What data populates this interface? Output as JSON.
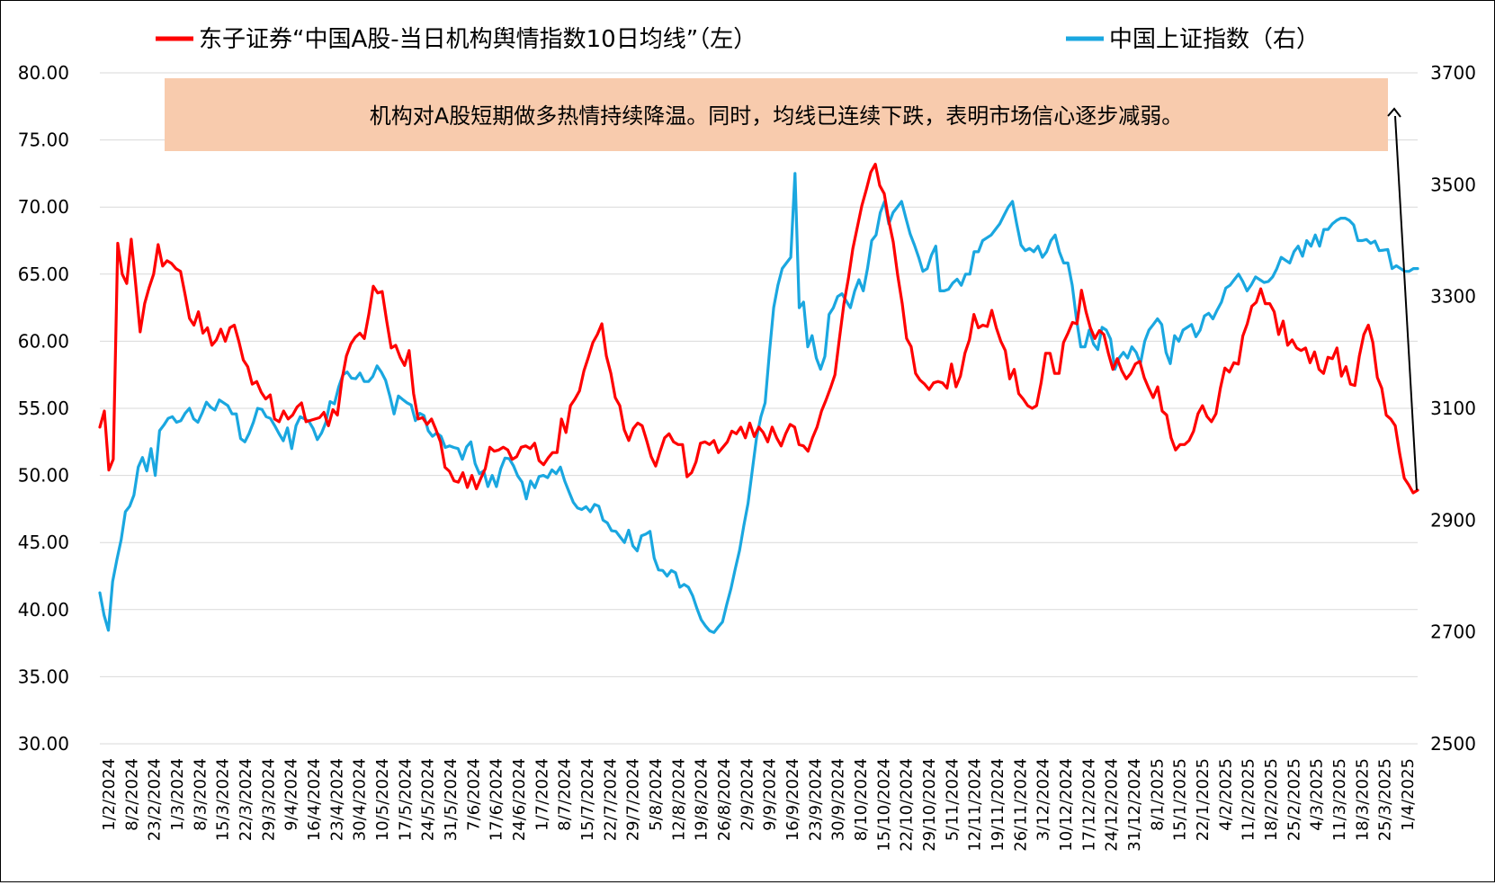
{
  "chart_data": {
    "type": "line",
    "legend": [
      {
        "name": "东子证券“中国A股-当日机构舆情指数10日均线”（左）",
        "color": "#ff0000"
      },
      {
        "name": "中国上证指数（右）",
        "color": "#1aa7e0"
      }
    ],
    "legend_position": "top",
    "grid": "horizontal",
    "y_left": {
      "min": 30,
      "max": 80,
      "step": 5,
      "ticks": [
        "30.00",
        "35.00",
        "40.00",
        "45.00",
        "50.00",
        "55.00",
        "60.00",
        "65.00",
        "70.00",
        "75.00",
        "80.00"
      ]
    },
    "y_right": {
      "min": 2500,
      "max": 3700,
      "step": 200,
      "ticks": [
        "2500",
        "2700",
        "2900",
        "3100",
        "3300",
        "3500",
        "3700"
      ]
    },
    "x_tick_labels": [
      "1/2/2024",
      "8/2/2024",
      "23/2/2024",
      "1/3/2024",
      "8/3/2024",
      "15/3/2024",
      "22/3/2024",
      "29/3/2024",
      "9/4/2024",
      "16/4/2024",
      "23/4/2024",
      "30/4/2024",
      "10/5/2024",
      "17/5/2024",
      "24/5/2024",
      "31/5/2024",
      "7/6/2024",
      "17/6/2024",
      "24/6/2024",
      "1/7/2024",
      "8/7/2024",
      "15/7/2024",
      "22/7/2024",
      "29/7/2024",
      "5/8/2024",
      "12/8/2024",
      "19/8/2024",
      "26/8/2024",
      "2/9/2024",
      "9/9/2024",
      "16/9/2024",
      "23/9/2024",
      "30/9/2024",
      "8/10/2024",
      "15/10/2024",
      "22/10/2024",
      "29/10/2024",
      "5/11/2024",
      "12/11/2024",
      "19/11/2024",
      "26/11/2024",
      "3/12/2024",
      "10/12/2024",
      "17/12/2024",
      "24/12/2024",
      "31/12/2024",
      "8/1/2025",
      "15/1/2025",
      "22/1/2025",
      "4/2/2025",
      "11/2/2025",
      "18/2/2025",
      "25/2/2025",
      "4/3/2025",
      "11/3/2025",
      "18/3/2025",
      "25/3/2025",
      "1/4/2025"
    ],
    "series": [
      {
        "name": "东子证券“中国A股-当日机构舆情指数10日均线”（左）",
        "axis": "left",
        "color": "#ff0000",
        "values": [
          53.6,
          54.8,
          50.4,
          51.2,
          67.3,
          65.0,
          64.3,
          67.6,
          64.2,
          60.7,
          62.8,
          64.0,
          65.0,
          67.2,
          65.6,
          66.0,
          65.8,
          65.4,
          65.2,
          63.5,
          61.7,
          61.2,
          62.2,
          60.6,
          61.0,
          59.7,
          60.1,
          60.9,
          60.0,
          61.0,
          61.2,
          60.0,
          58.6,
          58.1,
          56.8,
          57.0,
          56.2,
          55.7,
          56.0,
          54.2,
          54.0,
          54.8,
          54.2,
          54.5,
          55.1,
          55.4,
          54.0,
          54.1,
          54.2,
          54.3,
          54.7,
          53.7,
          54.9,
          54.5,
          57.1,
          58.9,
          59.8,
          60.3,
          60.6,
          60.2,
          62.0,
          64.1,
          63.6,
          63.7,
          61.5,
          59.5,
          59.7,
          58.8,
          58.2,
          59.3,
          56.1,
          54.2,
          54.3,
          53.8,
          54.2,
          53.4,
          52.5,
          50.6,
          50.3,
          49.6,
          49.5,
          50.2,
          49.1,
          50.0,
          49.0,
          49.8,
          50.5,
          52.1,
          51.8,
          51.9,
          52.1,
          51.9,
          51.2,
          51.4,
          52.1,
          52.2,
          52.0,
          52.4,
          51.1,
          50.8,
          51.3,
          51.7,
          51.7,
          54.2,
          53.2,
          55.2,
          55.7,
          56.3,
          57.8,
          58.8,
          59.9,
          60.5,
          61.3,
          58.9,
          57.6,
          55.8,
          55.2,
          53.4,
          52.6,
          53.5,
          53.9,
          53.7,
          52.6,
          51.4,
          50.7,
          51.8,
          52.8,
          53.1,
          52.5,
          52.3,
          52.3,
          49.9,
          50.2,
          51.0,
          52.4,
          52.5,
          52.3,
          52.6,
          51.7,
          52.1,
          52.5,
          53.3,
          53.1,
          53.6,
          52.8,
          53.9,
          52.9,
          53.6,
          53.2,
          52.5,
          53.6,
          52.8,
          52.2,
          53.1,
          53.8,
          53.6,
          52.3,
          52.2,
          51.8,
          52.8,
          53.6,
          54.8,
          55.6,
          56.5,
          57.5,
          60.2,
          62.8,
          64.7,
          66.9,
          68.5,
          70.1,
          71.3,
          72.6,
          73.2,
          71.6,
          71.0,
          69.0,
          67.4,
          64.9,
          62.8,
          60.2,
          59.6,
          57.6,
          57.1,
          56.8,
          56.4,
          56.9,
          57.0,
          56.9,
          56.5,
          58.3,
          56.6,
          57.4,
          59.1,
          60.1,
          62.0,
          61.0,
          61.2,
          61.1,
          62.3,
          61.0,
          60.0,
          59.3,
          57.2,
          57.9,
          56.1,
          55.7,
          55.2,
          55.0,
          55.2,
          56.9,
          59.1,
          59.1,
          57.6,
          57.6,
          59.9,
          60.6,
          61.4,
          61.3,
          63.8,
          62.2,
          61.0,
          60.2,
          60.8,
          60.5,
          59.1,
          57.9,
          58.7,
          57.8,
          57.2,
          57.6,
          58.3,
          58.5,
          57.3,
          56.5,
          55.8,
          56.6,
          54.8,
          54.5,
          52.8,
          51.9,
          52.3,
          52.3,
          52.6,
          53.3,
          54.6,
          55.2,
          54.4,
          54.0,
          54.6,
          56.5,
          58.0,
          57.7,
          58.4,
          58.3,
          60.4,
          61.3,
          62.6,
          62.9,
          63.9,
          62.8,
          62.8,
          62.2,
          60.5,
          61.5,
          59.7,
          60.1,
          59.5,
          59.3,
          59.5,
          58.4,
          59.2,
          57.9,
          57.6,
          58.8,
          58.7,
          59.5,
          57.4,
          58.1,
          56.8,
          56.7,
          58.9,
          60.5,
          61.2,
          59.9,
          57.3,
          56.5,
          54.5,
          54.2,
          53.7,
          51.6,
          49.8,
          49.3,
          48.7,
          48.9
        ]
      },
      {
        "name": "中国上证指数（右）",
        "axis": "right",
        "color": "#1aa7e0",
        "values": [
          2770,
          2730,
          2703,
          2790,
          2830,
          2865,
          2915,
          2925,
          2945,
          2995,
          3012,
          2988,
          3028,
          2980,
          3060,
          3070,
          3082,
          3085,
          3075,
          3078,
          3091,
          3100,
          3081,
          3075,
          3092,
          3111,
          3102,
          3097,
          3115,
          3110,
          3105,
          3090,
          3090,
          3046,
          3040,
          3055,
          3075,
          3100,
          3098,
          3085,
          3082,
          3069,
          3055,
          3042,
          3065,
          3028,
          3069,
          3085,
          3081,
          3077,
          3064,
          3044,
          3056,
          3075,
          3112,
          3108,
          3138,
          3160,
          3165,
          3154,
          3153,
          3163,
          3148,
          3148,
          3157,
          3176,
          3165,
          3150,
          3122,
          3090,
          3122,
          3116,
          3110,
          3106,
          3078,
          3091,
          3087,
          3060,
          3050,
          3056,
          3050,
          3030,
          3033,
          3030,
          3028,
          3009,
          3031,
          3040,
          3001,
          2983,
          2988,
          2960,
          2980,
          2960,
          2992,
          3011,
          3010,
          2997,
          2979,
          2968,
          2938,
          2970,
          2958,
          2978,
          2980,
          2976,
          2990,
          2983,
          2995,
          2970,
          2951,
          2932,
          2922,
          2919,
          2924,
          2915,
          2928,
          2925,
          2900,
          2895,
          2881,
          2880,
          2870,
          2860,
          2882,
          2854,
          2845,
          2872,
          2875,
          2880,
          2832,
          2811,
          2810,
          2800,
          2810,
          2806,
          2780,
          2785,
          2780,
          2765,
          2742,
          2722,
          2711,
          2702,
          2699,
          2709,
          2718,
          2749,
          2778,
          2813,
          2846,
          2890,
          2930,
          2990,
          3048,
          3085,
          3110,
          3200,
          3280,
          3320,
          3350,
          3360,
          3370,
          3520,
          3280,
          3290,
          3210,
          3230,
          3190,
          3170,
          3193,
          3268,
          3280,
          3300,
          3305,
          3292,
          3280,
          3310,
          3330,
          3310,
          3350,
          3400,
          3410,
          3450,
          3470,
          3430,
          3450,
          3460,
          3470,
          3440,
          3412,
          3392,
          3370,
          3345,
          3350,
          3374,
          3390,
          3310,
          3310,
          3313,
          3324,
          3331,
          3320,
          3340,
          3340,
          3380,
          3380,
          3400,
          3405,
          3410,
          3420,
          3430,
          3445,
          3460,
          3470,
          3430,
          3392,
          3382,
          3386,
          3380,
          3390,
          3370,
          3380,
          3400,
          3410,
          3380,
          3360,
          3360,
          3320,
          3260,
          3210,
          3210,
          3240,
          3215,
          3205,
          3245,
          3240,
          3224,
          3170,
          3190,
          3200,
          3190,
          3210,
          3200,
          3180,
          3220,
          3240,
          3250,
          3260,
          3250,
          3200,
          3180,
          3230,
          3220,
          3240,
          3245,
          3250,
          3228,
          3240,
          3265,
          3270,
          3260,
          3276,
          3290,
          3315,
          3320,
          3330,
          3340,
          3327,
          3310,
          3321,
          3335,
          3330,
          3325,
          3327,
          3335,
          3350,
          3370,
          3365,
          3360,
          3380,
          3390,
          3372,
          3400,
          3390,
          3410,
          3390,
          3420,
          3420,
          3430,
          3436,
          3440,
          3440,
          3436,
          3428,
          3400,
          3400,
          3402,
          3395,
          3399,
          3382,
          3383,
          3384,
          3350,
          3355,
          3350,
          3345,
          3345,
          3350,
          3350
        ]
      }
    ],
    "annotation": {
      "text": "机构对A股短期做多热情持续降温。同时，均线已连续下跌，表明市场信心逐步减弱。",
      "background": "#f8cbad"
    }
  }
}
